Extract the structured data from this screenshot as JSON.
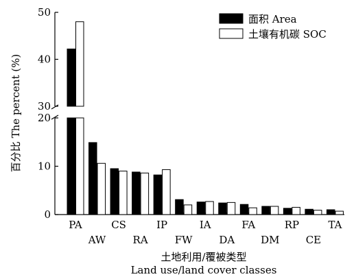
{
  "chart_data": {
    "type": "bar",
    "categories": [
      "PA",
      "AW",
      "CS",
      "RA",
      "IP",
      "FW",
      "IA",
      "DA",
      "FA",
      "DM",
      "RP",
      "CE",
      "TA"
    ],
    "series": [
      {
        "name": "面积 Area",
        "values": [
          42.2,
          14.9,
          9.5,
          8.8,
          8.2,
          3.1,
          2.6,
          2.4,
          2.1,
          1.7,
          1.3,
          1.1,
          1.0
        ],
        "color": "#000000"
      },
      {
        "name": "土壤有机碳 SOC",
        "values": [
          48.0,
          10.6,
          9.0,
          8.6,
          9.3,
          2.0,
          2.7,
          2.5,
          1.4,
          1.7,
          1.5,
          0.9,
          0.7
        ],
        "color": "#ffffff"
      }
    ],
    "ylabel": "百分比 The percent (%)",
    "xlabel_zh": "土地利用/覆被类型",
    "xlabel_en": "Land use/land cover classes",
    "y_axis_break": {
      "lower_range": [
        0,
        20
      ],
      "upper_range": [
        30,
        50
      ]
    },
    "y_ticks_lower": [
      0,
      10,
      20
    ],
    "y_ticks_upper": [
      30,
      40,
      50
    ],
    "legend_position": "top-right",
    "grid": false
  }
}
